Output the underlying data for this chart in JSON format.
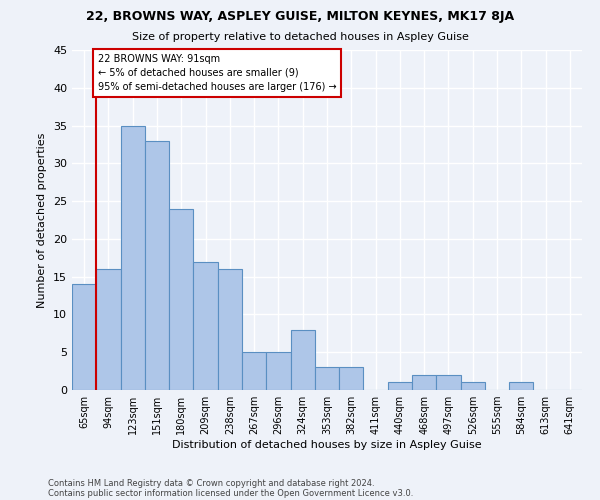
{
  "title": "22, BROWNS WAY, ASPLEY GUISE, MILTON KEYNES, MK17 8JA",
  "subtitle": "Size of property relative to detached houses in Aspley Guise",
  "xlabel": "Distribution of detached houses by size in Aspley Guise",
  "ylabel": "Number of detached properties",
  "categories": [
    "65sqm",
    "94sqm",
    "123sqm",
    "151sqm",
    "180sqm",
    "209sqm",
    "238sqm",
    "267sqm",
    "296sqm",
    "324sqm",
    "353sqm",
    "382sqm",
    "411sqm",
    "440sqm",
    "468sqm",
    "497sqm",
    "526sqm",
    "555sqm",
    "584sqm",
    "613sqm",
    "641sqm"
  ],
  "values": [
    14,
    16,
    35,
    33,
    24,
    17,
    16,
    5,
    5,
    8,
    3,
    3,
    0,
    1,
    2,
    2,
    1,
    0,
    1,
    0,
    0
  ],
  "bar_color": "#aec6e8",
  "bar_edge_color": "#5a8fc2",
  "annotation_text": "22 BROWNS WAY: 91sqm\n← 5% of detached houses are smaller (9)\n95% of semi-detached houses are larger (176) →",
  "annotation_box_color": "#ffffff",
  "annotation_box_edge": "#cc0000",
  "vline_color": "#cc0000",
  "vline_x": 0.5,
  "footnote1": "Contains HM Land Registry data © Crown copyright and database right 2024.",
  "footnote2": "Contains public sector information licensed under the Open Government Licence v3.0.",
  "background_color": "#eef2f9",
  "grid_color": "#ffffff",
  "ylim": [
    0,
    45
  ],
  "yticks": [
    0,
    5,
    10,
    15,
    20,
    25,
    30,
    35,
    40,
    45
  ],
  "title_fontsize": 9,
  "subtitle_fontsize": 8
}
